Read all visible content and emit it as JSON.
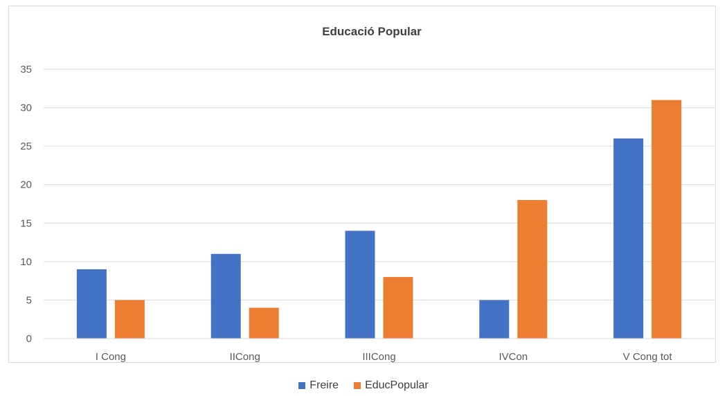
{
  "chart_data": {
    "type": "bar",
    "title": "Educació Popular",
    "categories": [
      "I Cong",
      "IICong",
      "IIICong",
      "IVCon",
      "V Cong tot"
    ],
    "series": [
      {
        "name": "Freire",
        "color": "#4472C4",
        "values": [
          9,
          11,
          14,
          5,
          26
        ]
      },
      {
        "name": "EducPopular",
        "color": "#ED7D31",
        "values": [
          5,
          4,
          8,
          18,
          31
        ]
      }
    ],
    "ylim": [
      0,
      35
    ],
    "yticks": [
      0,
      5,
      10,
      15,
      20,
      25,
      30,
      35
    ],
    "grid": true,
    "legend_position": "bottom"
  }
}
